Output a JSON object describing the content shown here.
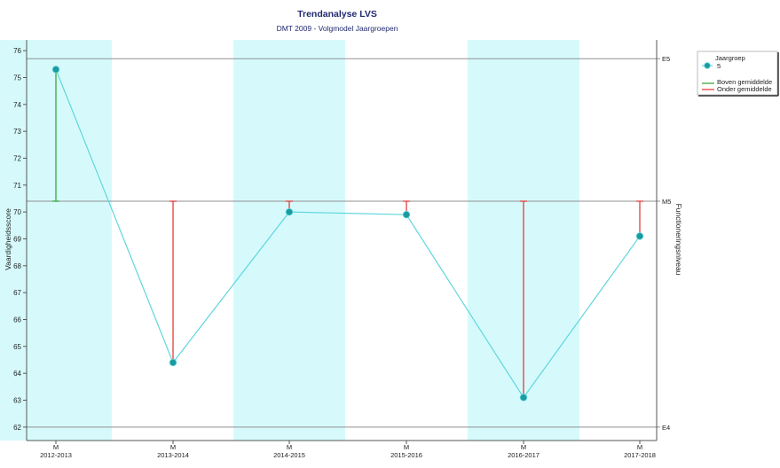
{
  "chart_data": {
    "type": "line",
    "title": "Trendanalyse LVS",
    "subtitle": "DMT 2009 - Volgmodel Jaargroepen",
    "ylabel": "Vaardigheidsscore",
    "ylabel_right": "Functioneringsniveau",
    "ylim": [
      61.5,
      76.4
    ],
    "yticks": [
      62,
      63,
      64,
      65,
      66,
      67,
      68,
      69,
      70,
      71,
      72,
      73,
      74,
      75,
      76
    ],
    "x_top_labels": [
      "M",
      "M",
      "M",
      "M",
      "M",
      "M"
    ],
    "categories": [
      "2012-2013",
      "2013-2014",
      "2014-2015",
      "2015-2016",
      "2016-2017",
      "2017-2018"
    ],
    "shaded_categories": [
      0,
      2,
      4
    ],
    "reference_lines": [
      {
        "label": "E5",
        "value": 75.7
      },
      {
        "label": "M5",
        "value": 70.4
      },
      {
        "label": "E4",
        "value": 62.0
      }
    ],
    "series": [
      {
        "name": "5",
        "values": [
          75.3,
          64.4,
          70.0,
          69.9,
          63.1,
          69.1
        ]
      }
    ],
    "legend": {
      "placement": "top-right",
      "title": "Jaargroep",
      "above_label": "Boven gemiddelde",
      "below_label": "Onder gemiddelde"
    },
    "colors": {
      "series": "#5fd6dc",
      "marker": "#1b9aa0",
      "band": "#d6fafc",
      "above": "#2e9e2e",
      "below": "#e03030",
      "ref_line": "#909090",
      "title": "#1f2a70"
    },
    "grid": false
  }
}
